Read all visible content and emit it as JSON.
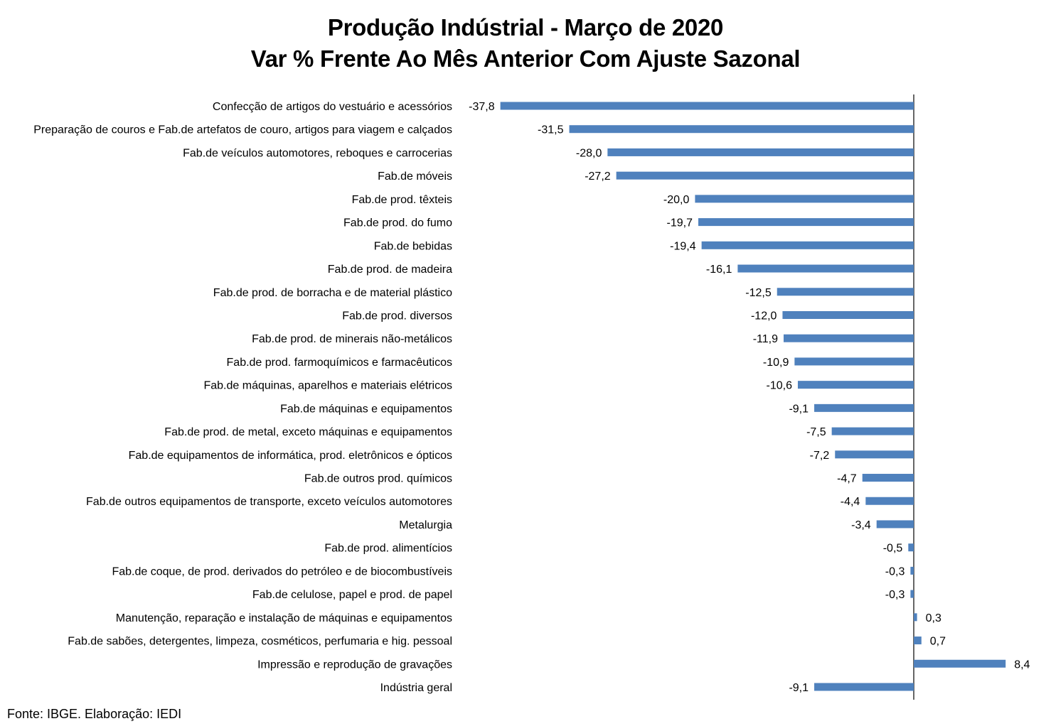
{
  "chart_data": {
    "type": "bar",
    "orientation": "horizontal",
    "title": "Produção Indústrial - Março de 2020",
    "subtitle": "Var % Frente Ao Mês Anterior Com Ajuste Sazonal",
    "xlabel": "",
    "ylabel": "",
    "grid": false,
    "legend": "none",
    "categories": [
      "Confecção de artigos do vestuário e acessórios",
      "Preparação de couros e Fab.de artefatos de couro, artigos para viagem e calçados",
      "Fab.de veículos automotores, reboques e carrocerias",
      "Fab.de móveis",
      "Fab.de prod. têxteis",
      "Fab.de prod. do fumo",
      "Fab.de bebidas",
      "Fab.de prod. de madeira",
      "Fab.de prod. de borracha e de material plástico",
      "Fab.de prod. diversos",
      "Fab.de prod. de minerais não-metálicos",
      "Fab.de prod. farmoquímicos e farmacêuticos",
      "Fab.de máquinas, aparelhos e materiais elétricos",
      "Fab.de máquinas e equipamentos",
      "Fab.de prod. de metal, exceto máquinas e equipamentos",
      "Fab.de equipamentos de informática, prod. eletrônicos e ópticos",
      "Fab.de outros prod. químicos",
      "Fab.de outros equipamentos de transporte, exceto veículos automotores",
      "Metalurgia",
      "Fab.de prod. alimentícios",
      "Fab.de coque, de prod. derivados do petróleo e de biocombustíveis",
      "Fab.de celulose, papel e prod. de papel",
      "Manutenção, reparação e instalação de máquinas e equipamentos",
      "Fab.de sabões, detergentes, limpeza, cosméticos, perfumaria e hig. pessoal",
      "Impressão e reprodução de gravações",
      "Indústria geral"
    ],
    "values": [
      -37.8,
      -31.5,
      -28.0,
      -27.2,
      -20.0,
      -19.7,
      -19.4,
      -16.1,
      -12.5,
      -12.0,
      -11.9,
      -10.9,
      -10.6,
      -9.1,
      -7.5,
      -7.2,
      -4.7,
      -4.4,
      -3.4,
      -0.5,
      -0.3,
      -0.3,
      0.3,
      0.7,
      8.4,
      -9.1
    ],
    "value_labels": [
      "-37,8",
      "-31,5",
      "-28,0",
      "-27,2",
      "-20,0",
      "-19,7",
      "-19,4",
      "-16,1",
      "-12,5",
      "-12,0",
      "-11,9",
      "-10,9",
      "-10,6",
      "-9,1",
      "-7,5",
      "-7,2",
      "-4,7",
      "-4,4",
      "-3,4",
      "-0,5",
      "-0,3",
      "-0,3",
      "0,3",
      "0,7",
      "8,4",
      "-9,1"
    ],
    "bar_color": "#4f81bd"
  },
  "source": "Fonte: IBGE. Elaboração: IEDI"
}
